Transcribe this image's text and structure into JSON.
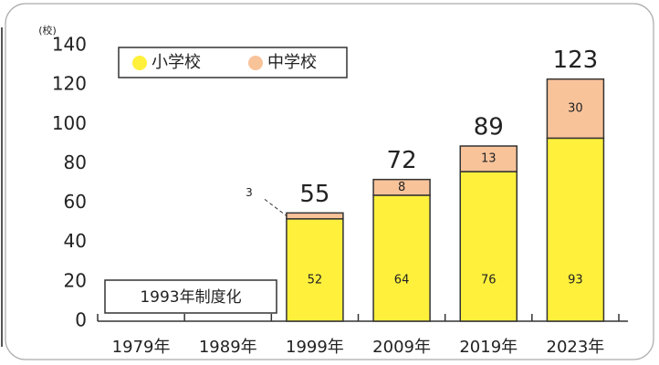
{
  "chart_data": {
    "type": "stacked_bar",
    "y_unit": "(校)",
    "categories": [
      "1979年",
      "1989年",
      "1999年",
      "2009年",
      "2019年",
      "2023年"
    ],
    "series": [
      {
        "name": "小学校",
        "color": "#fff03c",
        "values": [
          null,
          null,
          52,
          64,
          76,
          93
        ]
      },
      {
        "name": "中学校",
        "color": "#f9c39a",
        "values": [
          null,
          null,
          3,
          8,
          13,
          30
        ]
      }
    ],
    "totals": [
      null,
      null,
      55,
      72,
      89,
      123
    ],
    "annotation": "1993年制度化",
    "ylim": [
      0,
      140
    ],
    "yticks": [
      0,
      20,
      40,
      60,
      80,
      100,
      120,
      140
    ]
  }
}
